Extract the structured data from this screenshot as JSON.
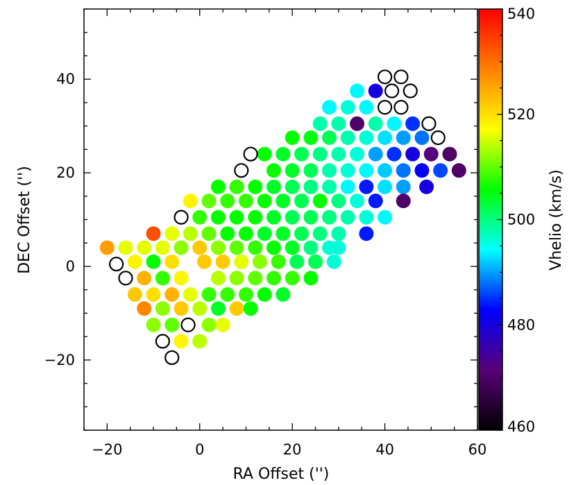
{
  "chart_data": {
    "type": "scatter",
    "title": "",
    "xlabel": "RA Offset ('')",
    "ylabel": "DEC Offset ('')",
    "xlim": [
      -25,
      60
    ],
    "ylim": [
      -35,
      55
    ],
    "x_ticks": [
      -20,
      0,
      20,
      40,
      60
    ],
    "y_ticks": [
      -20,
      0,
      20,
      40
    ],
    "grid": false,
    "colorbar": {
      "label": "Vhelio (km/s)",
      "range": [
        460,
        540
      ],
      "ticks": [
        460,
        480,
        500,
        520,
        540
      ],
      "colormap": [
        "#000000",
        "#5a0078",
        "#0000ff",
        "#00ffff",
        "#00ff00",
        "#ffff00",
        "#ff8000",
        "#ff0000"
      ]
    },
    "empty_fibers": [
      [
        40,
        40.5
      ],
      [
        43.5,
        40.5
      ],
      [
        41.5,
        37.5
      ],
      [
        45.5,
        37.5
      ],
      [
        40,
        34
      ],
      [
        43.5,
        34
      ],
      [
        49.5,
        30.5
      ],
      [
        51.5,
        27.5
      ],
      [
        11,
        24
      ],
      [
        9,
        20.5
      ],
      [
        -4,
        10.5
      ],
      [
        -18,
        0.5
      ],
      [
        -16,
        -2.5
      ],
      [
        -2.5,
        -12.5
      ],
      [
        -8,
        -16
      ],
      [
        -6,
        -19.5
      ]
    ],
    "fibers": [
      [
        34,
        37.5,
        494
      ],
      [
        38,
        37.5,
        480
      ],
      [
        28,
        34,
        494
      ],
      [
        32,
        34,
        496
      ],
      [
        36,
        34,
        494
      ],
      [
        26,
        30.5,
        498
      ],
      [
        30,
        30.5,
        498
      ],
      [
        34,
        30.5,
        470
      ],
      [
        38,
        30.5,
        498
      ],
      [
        42,
        30.5,
        494
      ],
      [
        46,
        30.5,
        485
      ],
      [
        20,
        27.5,
        506
      ],
      [
        24,
        27.5,
        505
      ],
      [
        28,
        27.5,
        502
      ],
      [
        32,
        27.5,
        498
      ],
      [
        36,
        27.5,
        496
      ],
      [
        40,
        27.5,
        493
      ],
      [
        44,
        27.5,
        490
      ],
      [
        48,
        27.5,
        488
      ],
      [
        14,
        24,
        506
      ],
      [
        18,
        24,
        504
      ],
      [
        22,
        24,
        502
      ],
      [
        26,
        24,
        500
      ],
      [
        30,
        24,
        498
      ],
      [
        34,
        24,
        496
      ],
      [
        38,
        24,
        490
      ],
      [
        42,
        24,
        485
      ],
      [
        46,
        24,
        480
      ],
      [
        50,
        24,
        472
      ],
      [
        54,
        24,
        470
      ],
      [
        16,
        20.5,
        506
      ],
      [
        20,
        20.5,
        504
      ],
      [
        24,
        20.5,
        502
      ],
      [
        28,
        20.5,
        498
      ],
      [
        32,
        20.5,
        496
      ],
      [
        36,
        20.5,
        494
      ],
      [
        40,
        20.5,
        492
      ],
      [
        44,
        20.5,
        488
      ],
      [
        48,
        20.5,
        482
      ],
      [
        52,
        20.5,
        486
      ],
      [
        56,
        20.5,
        470
      ],
      [
        4,
        17,
        506
      ],
      [
        8,
        17,
        508
      ],
      [
        12,
        17,
        506
      ],
      [
        16,
        17,
        504
      ],
      [
        20,
        17,
        502
      ],
      [
        24,
        17,
        500
      ],
      [
        28,
        17,
        498
      ],
      [
        32,
        17,
        494
      ],
      [
        36,
        17,
        484
      ],
      [
        40,
        17,
        493
      ],
      [
        44,
        17,
        490
      ],
      [
        49,
        17,
        480
      ],
      [
        -2,
        14,
        518
      ],
      [
        2,
        14,
        510
      ],
      [
        6,
        14,
        508
      ],
      [
        10,
        14,
        508
      ],
      [
        14,
        14,
        506
      ],
      [
        18,
        14,
        504
      ],
      [
        22,
        14,
        502
      ],
      [
        26,
        14,
        506
      ],
      [
        30,
        14,
        500
      ],
      [
        34,
        14,
        496
      ],
      [
        38,
        14,
        484
      ],
      [
        44,
        14,
        470
      ],
      [
        0,
        10.5,
        508
      ],
      [
        4,
        10.5,
        506
      ],
      [
        8,
        10.5,
        506
      ],
      [
        12,
        10.5,
        506
      ],
      [
        16,
        10.5,
        504
      ],
      [
        20,
        10.5,
        502
      ],
      [
        24,
        10.5,
        502
      ],
      [
        28,
        10.5,
        500
      ],
      [
        32,
        10.5,
        498
      ],
      [
        36,
        10.5,
        496
      ],
      [
        40,
        10.5,
        494
      ],
      [
        -10,
        7,
        533
      ],
      [
        -6,
        7,
        516
      ],
      [
        -2,
        7,
        514
      ],
      [
        2,
        7,
        510
      ],
      [
        6,
        7,
        506
      ],
      [
        10,
        7,
        506
      ],
      [
        14,
        7,
        504
      ],
      [
        18,
        7,
        504
      ],
      [
        22,
        7,
        502
      ],
      [
        26,
        7,
        500
      ],
      [
        30,
        7,
        498
      ],
      [
        36,
        7,
        484
      ],
      [
        -20,
        4,
        526
      ],
      [
        -16,
        4,
        516
      ],
      [
        -12,
        4,
        516
      ],
      [
        -8,
        4,
        516
      ],
      [
        -4,
        4,
        512
      ],
      [
        0,
        4,
        522
      ],
      [
        4,
        4,
        512
      ],
      [
        8,
        4,
        510
      ],
      [
        12,
        4,
        508
      ],
      [
        16,
        4,
        506
      ],
      [
        20,
        4,
        504
      ],
      [
        24,
        4,
        500
      ],
      [
        28,
        4,
        496
      ],
      [
        30,
        4,
        496
      ],
      [
        -14,
        1,
        518
      ],
      [
        -10,
        1,
        506
      ],
      [
        -6,
        1,
        520
      ],
      [
        1,
        1,
        522
      ],
      [
        5,
        1,
        522
      ],
      [
        9,
        1,
        516
      ],
      [
        13,
        1,
        512
      ],
      [
        17,
        1,
        508
      ],
      [
        21,
        1,
        502
      ],
      [
        25,
        1,
        502
      ],
      [
        29,
        1,
        496
      ],
      [
        -12,
        -2.5,
        524
      ],
      [
        -8,
        -2.5,
        508
      ],
      [
        -4,
        -2.5,
        518
      ],
      [
        4,
        -2.5,
        514
      ],
      [
        8,
        -2.5,
        512
      ],
      [
        12,
        -2.5,
        510
      ],
      [
        16,
        -2.5,
        508
      ],
      [
        20,
        -2.5,
        508
      ],
      [
        24,
        -2.5,
        506
      ],
      [
        -14,
        -6,
        522
      ],
      [
        -10,
        -6,
        520
      ],
      [
        -6,
        -6,
        524
      ],
      [
        -2,
        -6,
        516
      ],
      [
        2,
        -6,
        508
      ],
      [
        6,
        -6,
        508
      ],
      [
        10,
        -6,
        508
      ],
      [
        14,
        -6,
        506
      ],
      [
        18,
        -6,
        504
      ],
      [
        -12,
        -9,
        528
      ],
      [
        -8,
        -9,
        512
      ],
      [
        -4,
        -9,
        522
      ],
      [
        0,
        -9,
        514
      ],
      [
        4,
        -9,
        504
      ],
      [
        8,
        -9,
        522
      ],
      [
        11,
        -9,
        506
      ],
      [
        -10,
        -12.5,
        512
      ],
      [
        -6,
        -12.5,
        510
      ],
      [
        2,
        -12.5,
        512
      ],
      [
        5,
        -12.5,
        516
      ],
      [
        -4,
        -16,
        518
      ],
      [
        0,
        -16,
        514
      ]
    ]
  }
}
